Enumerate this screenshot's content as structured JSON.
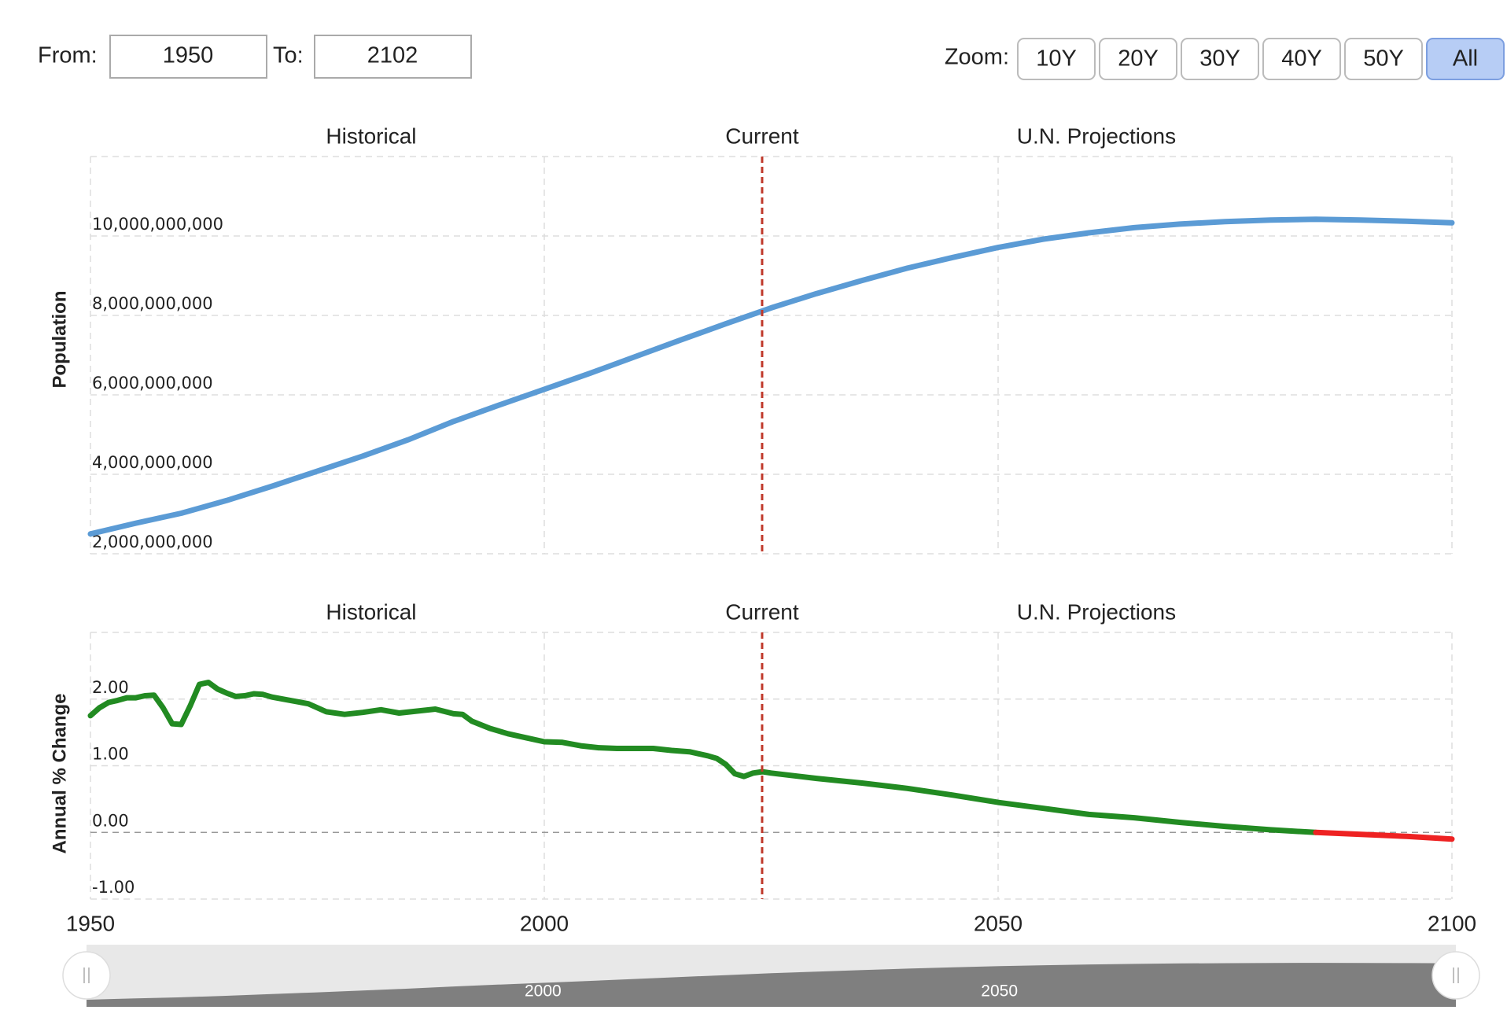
{
  "controls": {
    "from_label": "From:",
    "from_value": "1950",
    "to_label": "To:",
    "to_value": "2102",
    "zoom_label": "Zoom:",
    "zoom_buttons": [
      "10Y",
      "20Y",
      "30Y",
      "40Y",
      "50Y",
      "All"
    ],
    "active_zoom": 5
  },
  "chart_data": [
    {
      "type": "line",
      "y_label": "Population",
      "annotations": [
        "Historical",
        "Current",
        "U.N. Projections"
      ],
      "current_x": 2024,
      "color": "#5b9bd5",
      "x": [
        1950,
        1955,
        1960,
        1965,
        1970,
        1975,
        1980,
        1985,
        1990,
        1995,
        2000,
        2005,
        2010,
        2015,
        2020,
        2025,
        2030,
        2035,
        2040,
        2045,
        2050,
        2055,
        2060,
        2065,
        2070,
        2075,
        2080,
        2085,
        2090,
        2095,
        2100
      ],
      "values": [
        2500000000,
        2770000000,
        3020000000,
        3340000000,
        3700000000,
        4080000000,
        4460000000,
        4870000000,
        5330000000,
        5740000000,
        6140000000,
        6540000000,
        6960000000,
        7380000000,
        7790000000,
        8190000000,
        8550000000,
        8880000000,
        9190000000,
        9460000000,
        9710000000,
        9920000000,
        10080000000,
        10210000000,
        10300000000,
        10360000000,
        10400000000,
        10420000000,
        10400000000,
        10370000000,
        10330000000
      ],
      "xlim": [
        1950,
        2100
      ],
      "xticks": [
        1950,
        2000,
        2050,
        2100
      ],
      "ylim": [
        2000000000,
        12000000000
      ],
      "yticks": [
        {
          "value": 2000000000,
          "label": "2,000,000,000"
        },
        {
          "value": 4000000000,
          "label": "4,000,000,000"
        },
        {
          "value": 6000000000,
          "label": "6,000,000,000"
        },
        {
          "value": 8000000000,
          "label": "8,000,000,000"
        },
        {
          "value": 10000000000,
          "label": "10,000,000,000"
        }
      ],
      "grid": true
    },
    {
      "type": "line",
      "y_label": "Annual % Change",
      "annotations": [
        "Historical",
        "Current",
        "U.N. Projections"
      ],
      "current_x": 2024,
      "color": "#228b22",
      "negative_color": "#ee2222",
      "x": [
        1950,
        1951,
        1952,
        1953,
        1954,
        1955,
        1956,
        1957,
        1958,
        1959,
        1960,
        1961,
        1962,
        1963,
        1964,
        1965,
        1966,
        1967,
        1968,
        1969,
        1970,
        1972,
        1974,
        1975,
        1976,
        1978,
        1980,
        1982,
        1984,
        1986,
        1988,
        1990,
        1991,
        1992,
        1994,
        1996,
        1998,
        2000,
        2002,
        2004,
        2006,
        2008,
        2010,
        2012,
        2014,
        2016,
        2018,
        2019,
        2020,
        2021,
        2022,
        2023,
        2024,
        2025,
        2030,
        2035,
        2040,
        2045,
        2050,
        2055,
        2060,
        2065,
        2070,
        2075,
        2080,
        2085,
        2090,
        2095,
        2100
      ],
      "values": [
        1.75,
        1.87,
        1.95,
        1.98,
        2.02,
        2.02,
        2.05,
        2.06,
        1.87,
        1.63,
        1.62,
        1.9,
        2.22,
        2.25,
        2.15,
        2.09,
        2.04,
        2.05,
        2.08,
        2.07,
        2.03,
        1.98,
        1.93,
        1.87,
        1.81,
        1.77,
        1.8,
        1.84,
        1.79,
        1.82,
        1.85,
        1.78,
        1.77,
        1.67,
        1.56,
        1.48,
        1.42,
        1.36,
        1.35,
        1.3,
        1.27,
        1.26,
        1.26,
        1.26,
        1.23,
        1.21,
        1.15,
        1.11,
        1.02,
        0.88,
        0.84,
        0.89,
        0.91,
        0.89,
        0.81,
        0.74,
        0.66,
        0.56,
        0.45,
        0.36,
        0.27,
        0.22,
        0.15,
        0.09,
        0.04,
        0.0,
        -0.03,
        -0.06,
        -0.1
      ],
      "xlim": [
        1950,
        2100
      ],
      "xticks": [
        1950,
        2000,
        2050,
        2100
      ],
      "ylim": [
        -1,
        3
      ],
      "yticks": [
        {
          "value": -1,
          "label": "-1.00"
        },
        {
          "value": 0,
          "label": "0.00"
        },
        {
          "value": 1,
          "label": "1.00"
        },
        {
          "value": 2,
          "label": "2.00"
        }
      ],
      "grid": true
    }
  ]
}
